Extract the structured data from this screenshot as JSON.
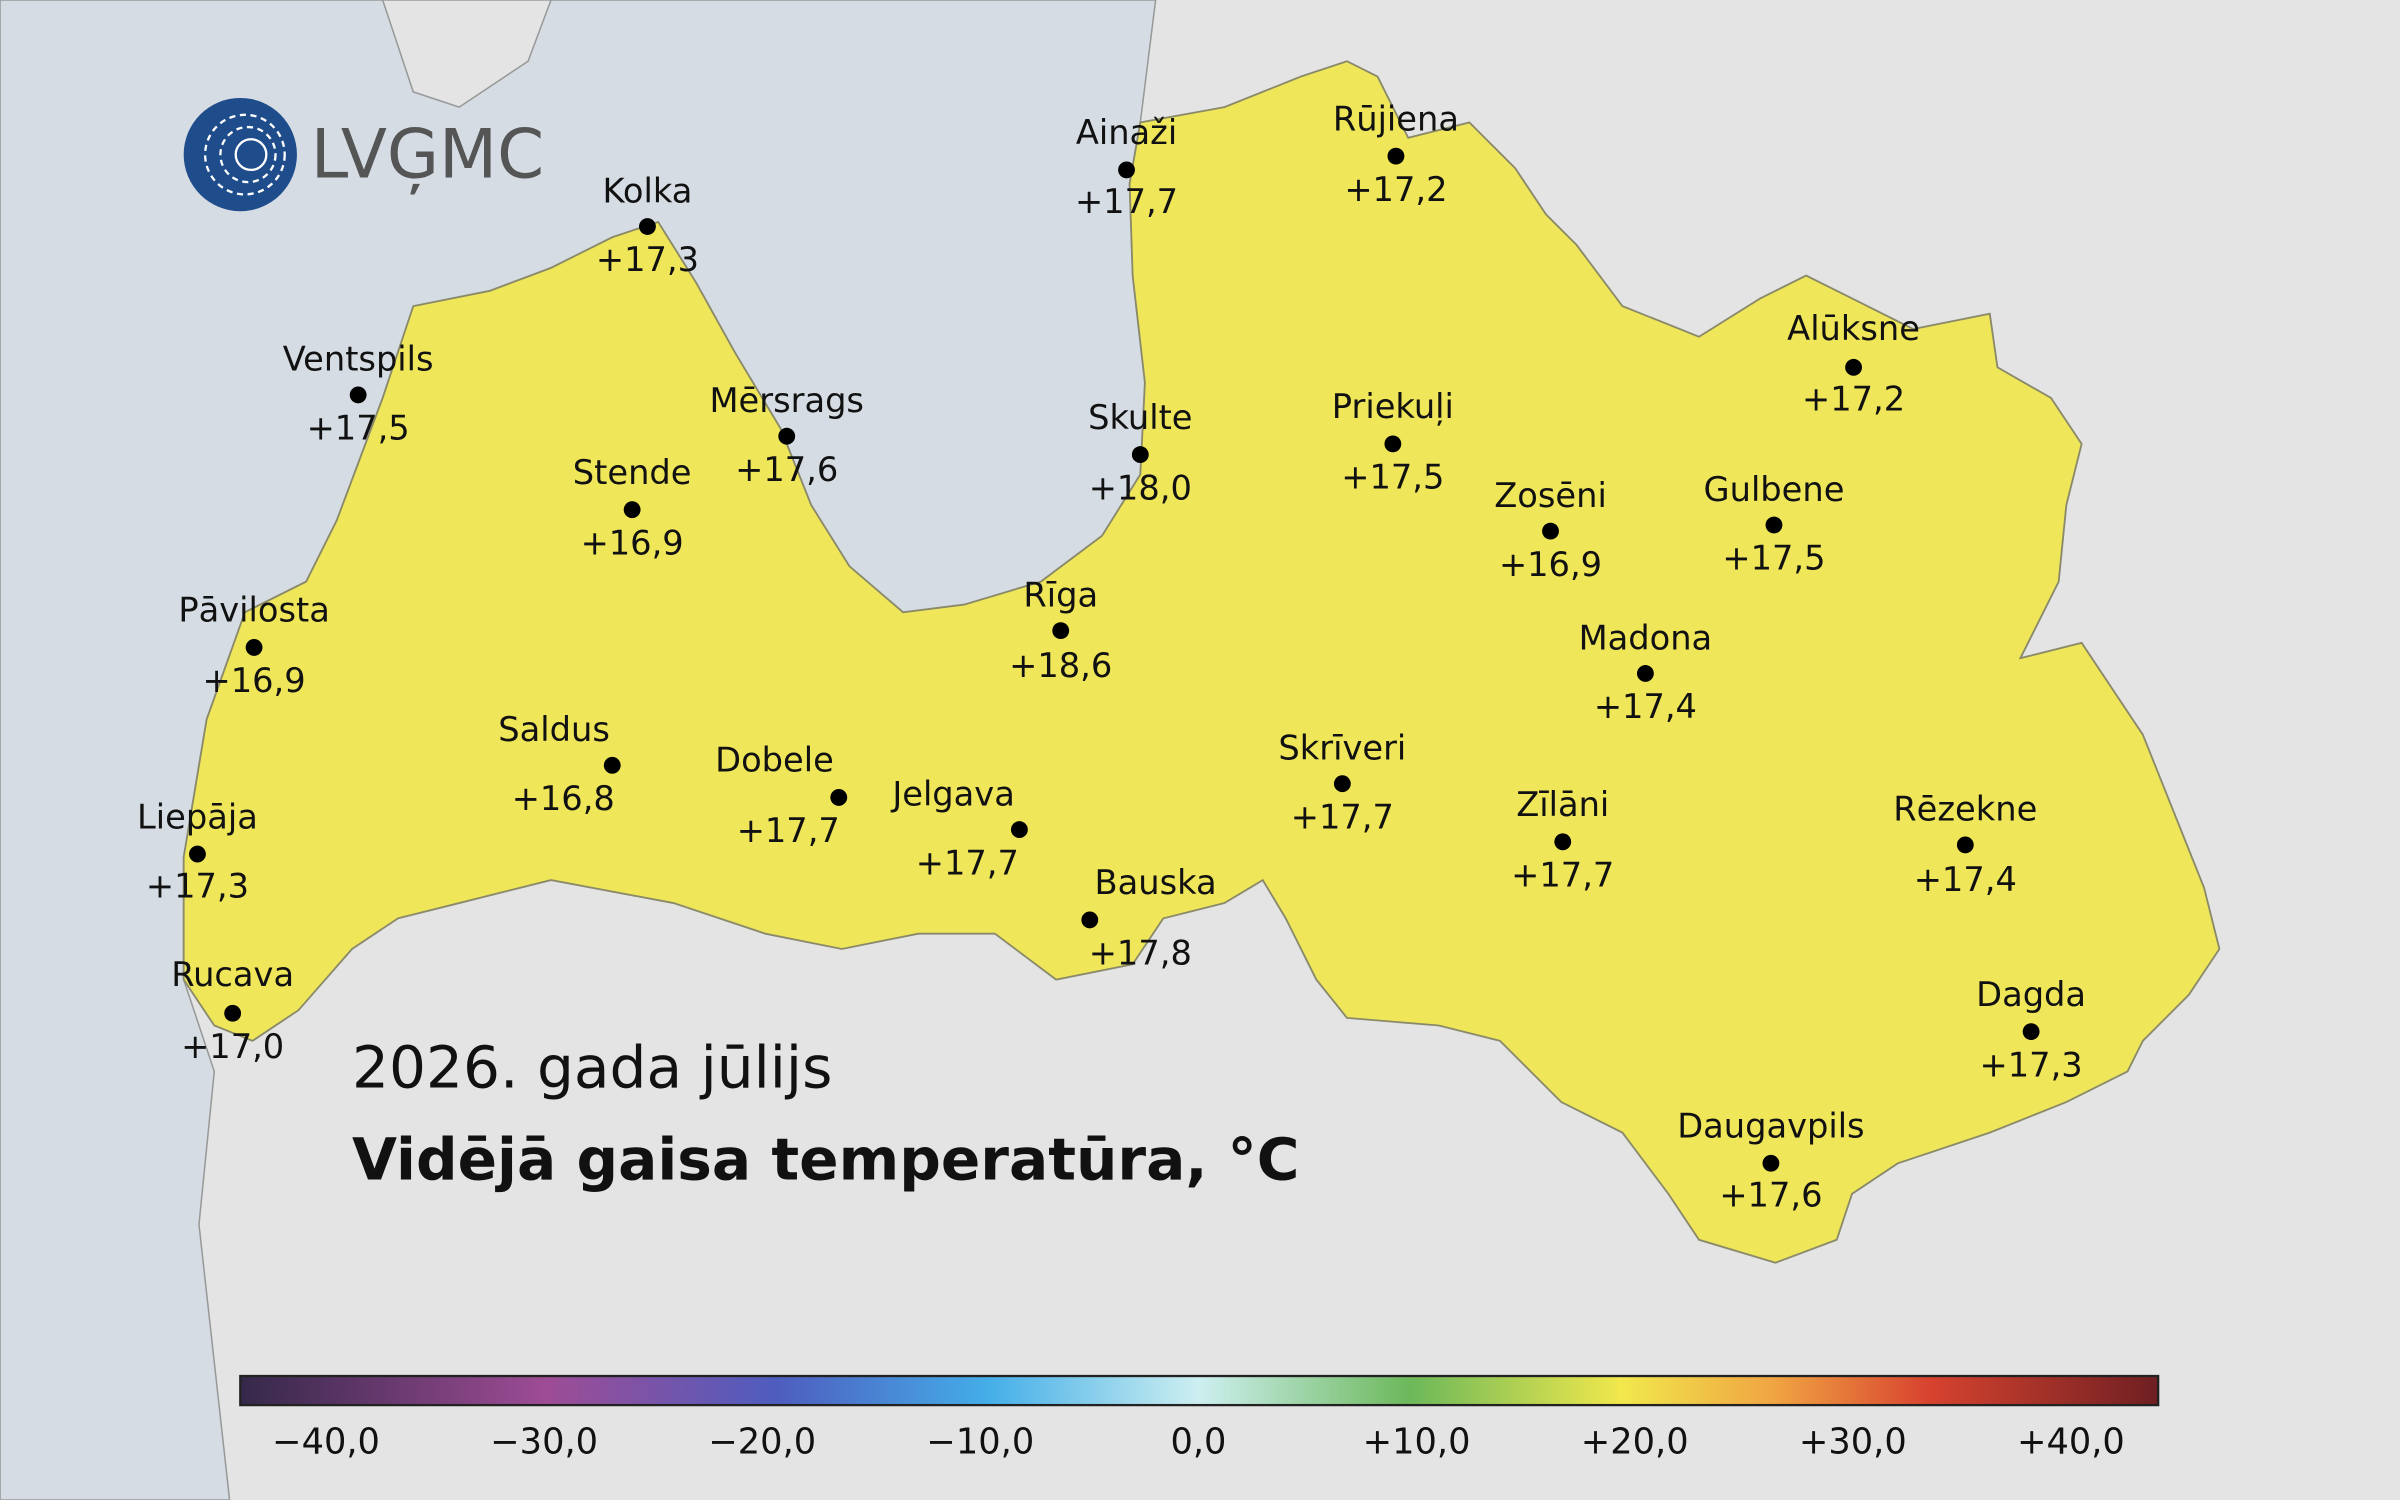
{
  "logo": "LVĢMC",
  "title": "2026. gada jūlijs",
  "subtitle": "Vidējā gaisa temperatūra, °C",
  "stations": [
    {
      "name": "Kolka",
      "value": "+17,3"
    },
    {
      "name": "Ventspils",
      "value": "+17,5"
    },
    {
      "name": "Mērsrags",
      "value": "+17,6"
    },
    {
      "name": "Stende",
      "value": "+16,9"
    },
    {
      "name": "Pāvilosta",
      "value": "+16,9"
    },
    {
      "name": "Saldus",
      "value": "+16,8"
    },
    {
      "name": "Dobele",
      "value": "+17,7"
    },
    {
      "name": "Jelgava",
      "value": "+17,7"
    },
    {
      "name": "Liepāja",
      "value": "+17,3"
    },
    {
      "name": "Rucava",
      "value": "+17,0"
    },
    {
      "name": "Ainaži",
      "value": "+17,7"
    },
    {
      "name": "Skulte",
      "value": "+18,0"
    },
    {
      "name": "Rīga",
      "value": "+18,6"
    },
    {
      "name": "Bauska",
      "value": "+17,8"
    },
    {
      "name": "Rūjiena",
      "value": "+17,2"
    },
    {
      "name": "Priekuļi",
      "value": "+17,5"
    },
    {
      "name": "Zosēni",
      "value": "+16,9"
    },
    {
      "name": "Alūksne",
      "value": "+17,2"
    },
    {
      "name": "Gulbene",
      "value": "+17,5"
    },
    {
      "name": "Madona",
      "value": "+17,4"
    },
    {
      "name": "Skrīveri",
      "value": "+17,7"
    },
    {
      "name": "Zīlāni",
      "value": "+17,7"
    },
    {
      "name": "Rēzekne",
      "value": "+17,4"
    },
    {
      "name": "Dagda",
      "value": "+17,3"
    },
    {
      "name": "Daugavpils",
      "value": "+17,6"
    }
  ],
  "colorbar": {
    "ticks": [
      "−40,0",
      "−30,0",
      "−20,0",
      "−10,0",
      "0,0",
      "+10,0",
      "+20,0",
      "+30,0",
      "+40,0"
    ]
  }
}
